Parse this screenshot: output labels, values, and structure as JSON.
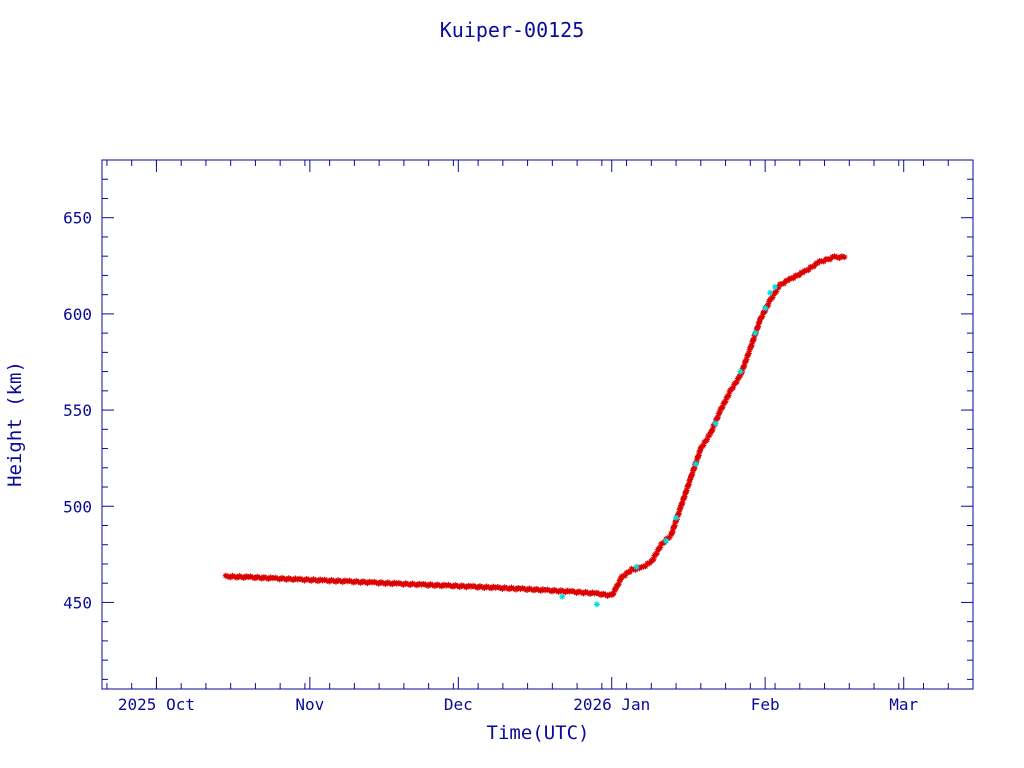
{
  "chart_data": {
    "type": "scatter",
    "title": "Kuiper-00125",
    "xlabel": "Time(UTC)",
    "ylabel": "Height (km)",
    "x_start": "2025-09-20",
    "x_end": "2026-03-15",
    "ylim": [
      405,
      680
    ],
    "x_ticks": [
      {
        "date": "2025-10-01",
        "label": "2025 Oct"
      },
      {
        "date": "2025-11-01",
        "label": "Nov"
      },
      {
        "date": "2025-12-01",
        "label": "Dec"
      },
      {
        "date": "2026-01-01",
        "label": "2026 Jan"
      },
      {
        "date": "2026-02-01",
        "label": "Feb"
      },
      {
        "date": "2026-03-01",
        "label": "Mar"
      }
    ],
    "y_ticks": [
      450,
      500,
      550,
      600,
      650
    ],
    "grid": false,
    "colors": {
      "axis": "#0a0a9a",
      "primary": "#dd0000",
      "secondary": "#00e0e0"
    },
    "series": [
      {
        "marker": "star",
        "color": "#dd0000",
        "points": [
          [
            "2025-10-15",
            463.5
          ],
          [
            "2025-10-20",
            463.1
          ],
          [
            "2025-10-25",
            462.5
          ],
          [
            "2025-10-30",
            461.9
          ],
          [
            "2025-11-04",
            461.4
          ],
          [
            "2025-11-09",
            460.9
          ],
          [
            "2025-11-14",
            460.3
          ],
          [
            "2025-11-19",
            459.7
          ],
          [
            "2025-11-24",
            459.2
          ],
          [
            "2025-11-29",
            458.7
          ],
          [
            "2025-12-04",
            458.2
          ],
          [
            "2025-12-09",
            457.6
          ],
          [
            "2025-12-14",
            457.0
          ],
          [
            "2025-12-19",
            456.3
          ],
          [
            "2025-12-24",
            455.6
          ],
          [
            "2025-12-29",
            454.6
          ],
          [
            "2026-01-01",
            453.5
          ],
          [
            "2026-01-02",
            458.0
          ],
          [
            "2026-01-03",
            463.0
          ],
          [
            "2026-01-05",
            467.0
          ],
          [
            "2026-01-07",
            468.0
          ],
          [
            "2026-01-09",
            471.0
          ],
          [
            "2026-01-11",
            480.0
          ],
          [
            "2026-01-13",
            485.0
          ],
          [
            "2026-01-15",
            500.0
          ],
          [
            "2026-01-17",
            515.0
          ],
          [
            "2026-01-19",
            530.0
          ],
          [
            "2026-01-21",
            538.0
          ],
          [
            "2026-01-23",
            550.0
          ],
          [
            "2026-01-25",
            560.0
          ],
          [
            "2026-01-27",
            568.0
          ],
          [
            "2026-01-29",
            582.0
          ],
          [
            "2026-01-31",
            597.0
          ],
          [
            "2026-02-02",
            607.0
          ],
          [
            "2026-02-04",
            615.0
          ],
          [
            "2026-02-06",
            618.0
          ],
          [
            "2026-02-09",
            622.0
          ],
          [
            "2026-02-12",
            627.0
          ],
          [
            "2026-02-15",
            629.5
          ],
          [
            "2026-02-17",
            629.5
          ]
        ]
      },
      {
        "marker": "star",
        "color": "#00e0e0",
        "points": [
          [
            "2025-12-22",
            453.0
          ],
          [
            "2025-12-29",
            449.0
          ],
          [
            "2026-01-06",
            468.5
          ],
          [
            "2026-01-12",
            482.0
          ],
          [
            "2026-01-14",
            494.0
          ],
          [
            "2026-01-18",
            522.0
          ],
          [
            "2026-01-22",
            543.0
          ],
          [
            "2026-01-27",
            570.0
          ],
          [
            "2026-01-30",
            590.0
          ],
          [
            "2026-02-01",
            603.0
          ],
          [
            "2026-02-02",
            611.0
          ],
          [
            "2026-02-03",
            614.0
          ]
        ]
      }
    ]
  }
}
